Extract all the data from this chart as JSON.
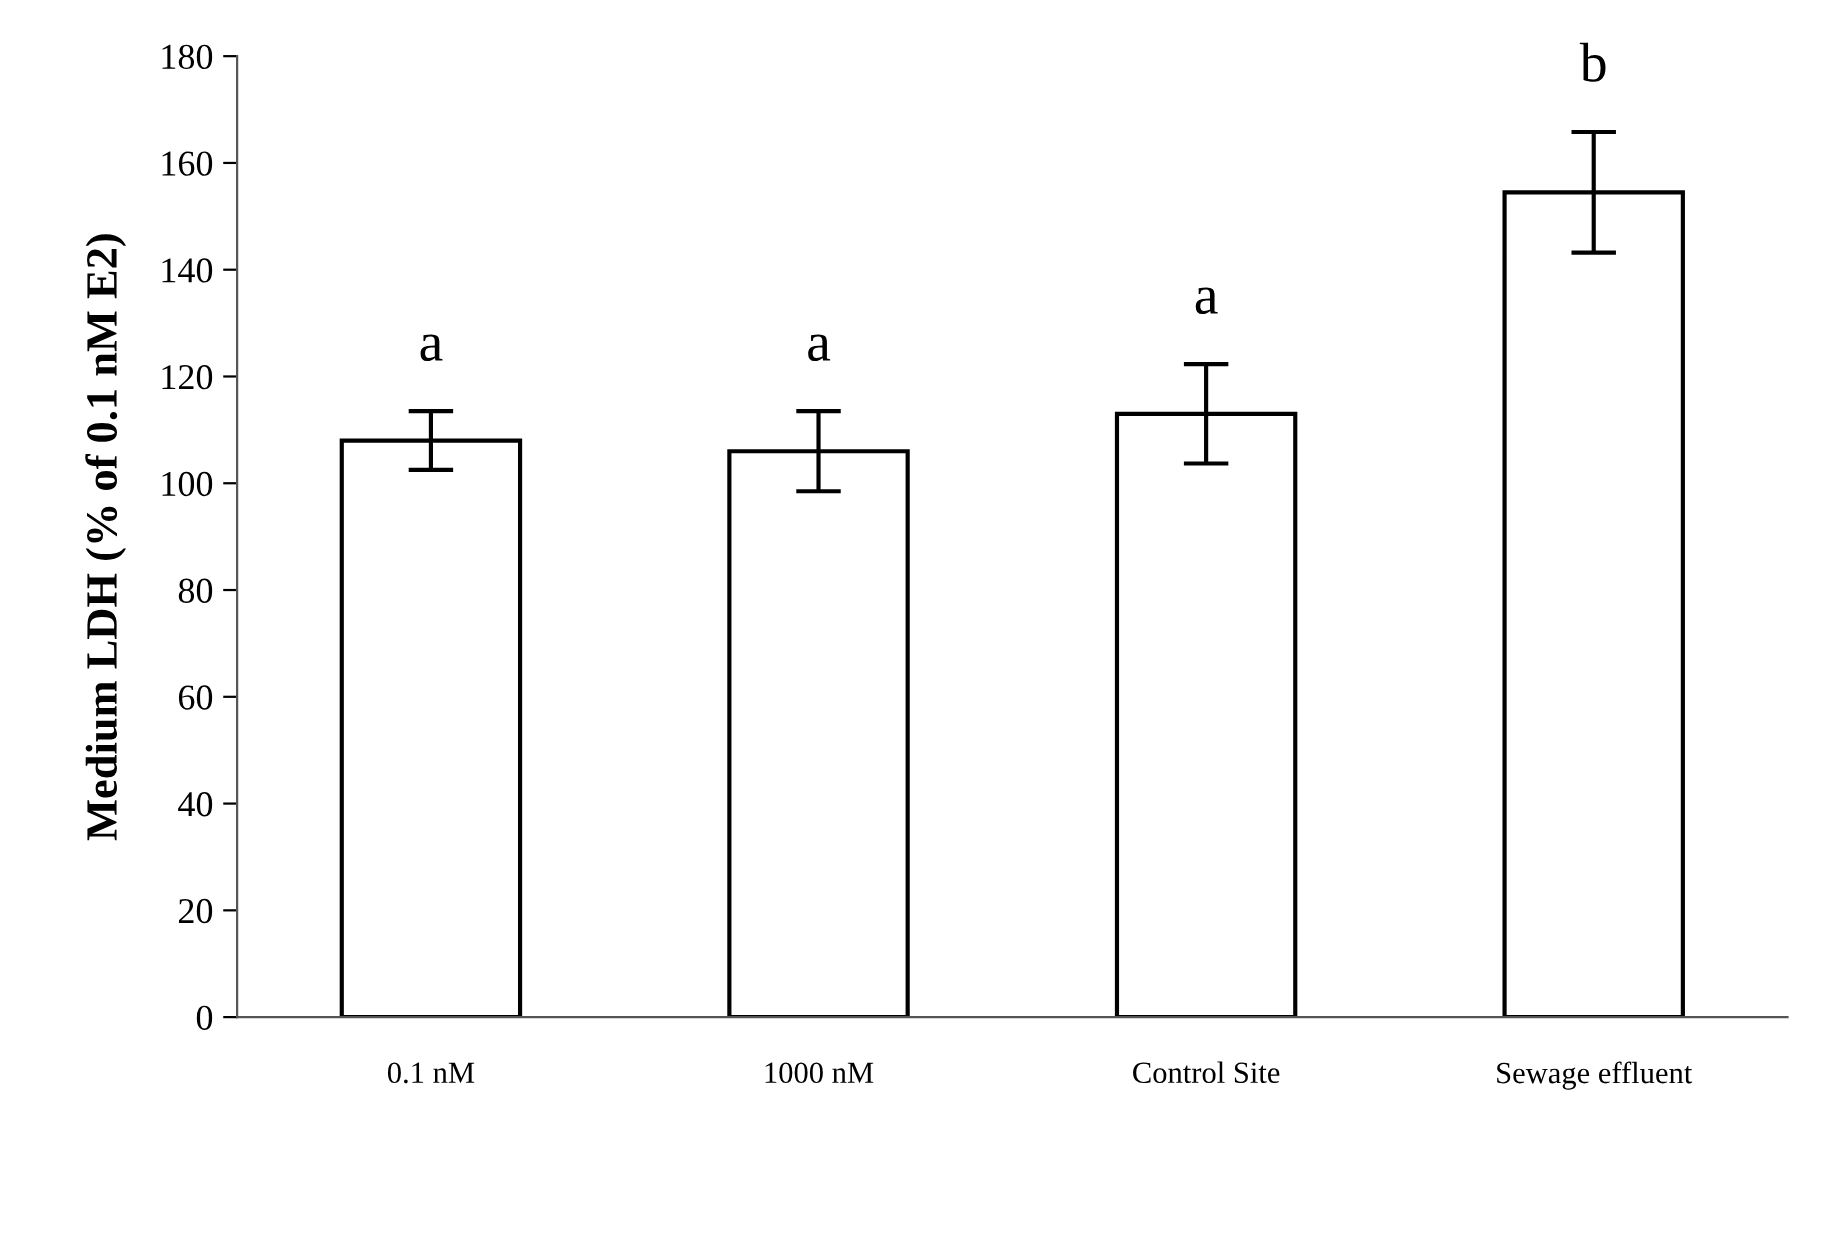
{
  "chart_data": {
    "type": "bar",
    "ylabel": "Medium LDH (% of 0.1 nM E2)",
    "categories": [
      "0.1 nM",
      "1000 nM",
      "Control Site",
      "Sewage effluent"
    ],
    "values": [
      108,
      106,
      113,
      154.5
    ],
    "errors": [
      5.5,
      7.5,
      9.3,
      11.3
    ],
    "color": "#ffffff",
    "ylim": [
      0,
      180
    ],
    "yticks": [
      0,
      20,
      40,
      60,
      80,
      100,
      120,
      140,
      160,
      180
    ],
    "grid": false,
    "legend": false,
    "annotations": [
      "a",
      "a",
      "a",
      "b"
    ]
  }
}
